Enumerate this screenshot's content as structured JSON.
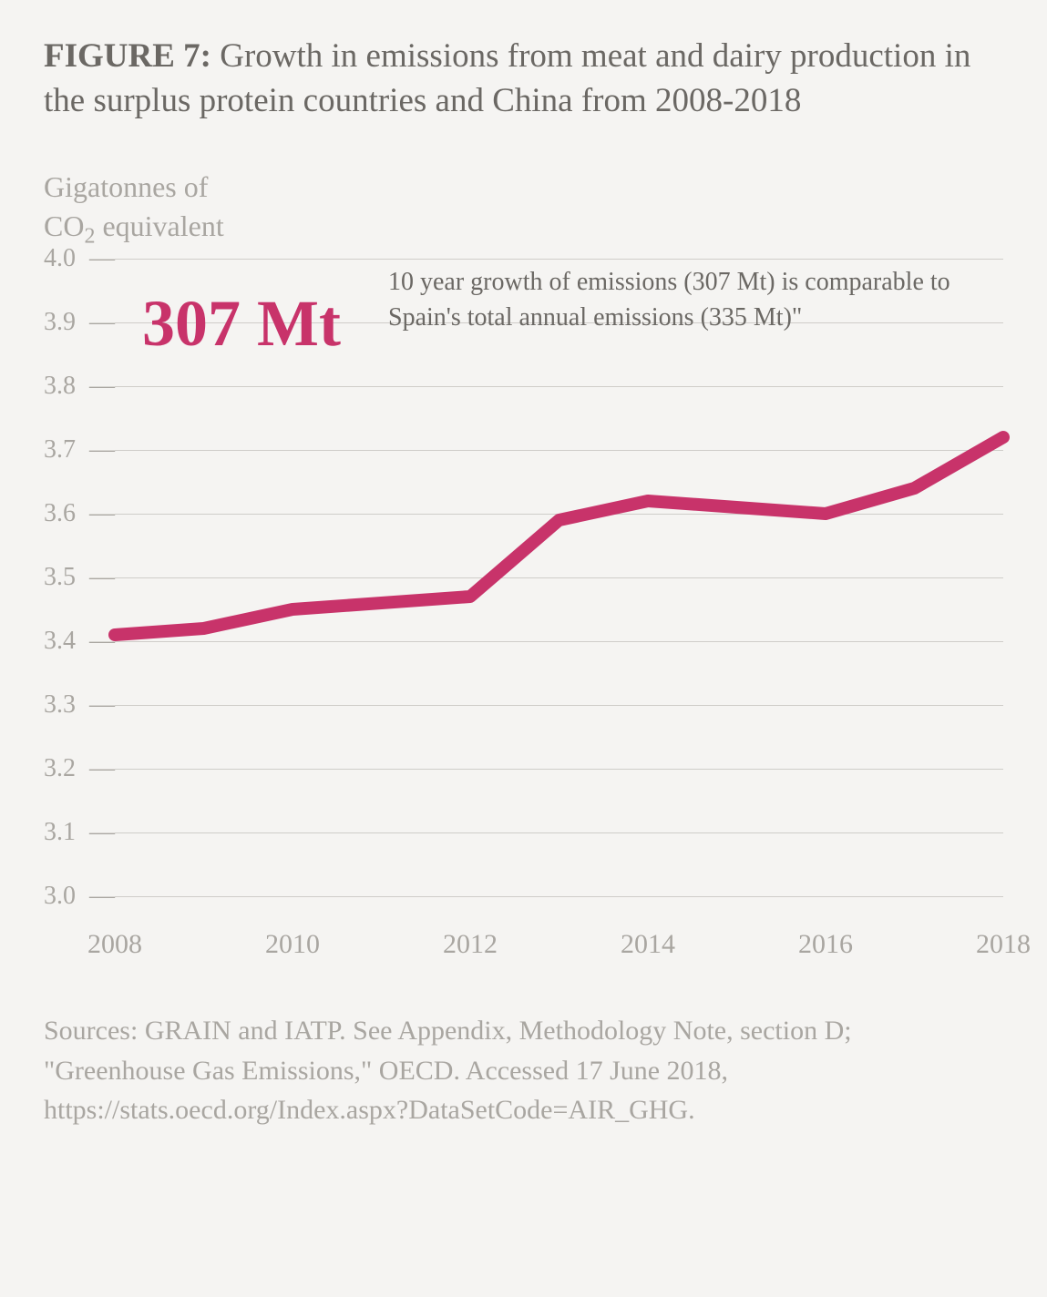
{
  "title_prefix": "FIGURE 7:",
  "title_rest": " Growth in emissions from meat and dairy production in the surplus protein countries and China from 2008-2018",
  "yaxis_label": "Gigatonnes of CO₂ equivalent",
  "callout": {
    "big_text": "307 Mt",
    "big_color": "#c8336a",
    "big_fontsize": 72,
    "body": "10 year growth of emissions (307 Mt) is comparable to Spain's total annual emissions (335 Mt)\""
  },
  "chart": {
    "type": "line",
    "x_values": [
      2008,
      2009,
      2010,
      2011,
      2012,
      2013,
      2014,
      2015,
      2016,
      2017,
      2018
    ],
    "y_values": [
      3.41,
      3.42,
      3.45,
      3.46,
      3.47,
      3.59,
      3.62,
      3.61,
      3.6,
      3.64,
      3.72
    ],
    "line_color": "#c8336a",
    "line_width": 14,
    "ylim": [
      3.0,
      4.0
    ],
    "xlim": [
      2008,
      2018
    ],
    "ytick_step": 0.1,
    "yticks": [
      "4.0",
      "3.9",
      "3.8",
      "3.7",
      "3.6",
      "3.5",
      "3.4",
      "3.3",
      "3.2",
      "3.1",
      "3.0"
    ],
    "xticks": [
      "2008",
      "2010",
      "2012",
      "2014",
      "2016",
      "2018"
    ],
    "grid_color": "#cfcdc9",
    "background_color": "#f5f4f2",
    "axis_label_color": "#a9a6a1",
    "tick_fontsize": 28
  },
  "sources": "Sources: GRAIN and IATP. See Appendix, Methodology Note, section D;\n\"Greenhouse Gas Emissions,\" OECD. Accessed 17 June 2018, https://stats.oecd.org/Index.aspx?DataSetCode=AIR_GHG."
}
